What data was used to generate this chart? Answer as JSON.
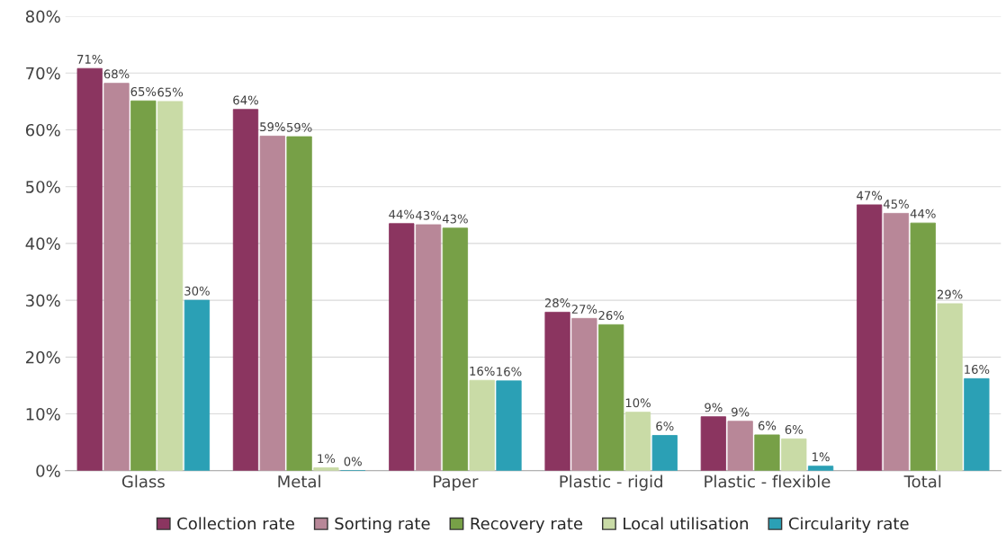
{
  "chart_data": {
    "type": "bar",
    "categories": [
      "Glass",
      "Metal",
      "Paper",
      "Plastic - rigid",
      "Plastic - flexible",
      "Total"
    ],
    "series": [
      {
        "name": "Collection rate",
        "color": "#8b3560",
        "values": [
          70.8,
          63.6,
          43.5,
          27.9,
          9.5,
          46.8
        ],
        "value_labels": [
          "71%",
          "64%",
          "44%",
          "28%",
          "9%",
          "47%"
        ]
      },
      {
        "name": "Sorting rate",
        "color": "#b88798",
        "values": [
          68.2,
          58.9,
          43.3,
          26.8,
          8.7,
          45.3
        ],
        "value_labels": [
          "68%",
          "59%",
          "43%",
          "27%",
          "9%",
          "45%"
        ]
      },
      {
        "name": "Recovery rate",
        "color": "#77a047",
        "values": [
          65.1,
          58.8,
          42.7,
          25.7,
          6.3,
          43.6
        ],
        "value_labels": [
          "65%",
          "59%",
          "43%",
          "26%",
          "6%",
          "44%"
        ]
      },
      {
        "name": "Local utilisation",
        "color": "#c9dba6",
        "values": [
          65.0,
          0.5,
          15.9,
          10.3,
          5.6,
          29.4
        ],
        "value_labels": [
          "65%",
          "1%",
          "16%",
          "10%",
          "6%",
          "29%"
        ]
      },
      {
        "name": "Circularity rate",
        "color": "#2ba0b5",
        "values": [
          30.0,
          0.0,
          15.8,
          6.2,
          0.8,
          16.2
        ],
        "value_labels": [
          "30%",
          "0%",
          "16%",
          "6%",
          "1%",
          "16%"
        ]
      }
    ],
    "ylim": [
      0,
      80
    ],
    "yticks": [
      {
        "value": 0,
        "label": "0%"
      },
      {
        "value": 10,
        "label": "10%"
      },
      {
        "value": 20,
        "label": "20%"
      },
      {
        "value": 30,
        "label": "30%"
      },
      {
        "value": 40,
        "label": "40%"
      },
      {
        "value": 50,
        "label": "50%"
      },
      {
        "value": 60,
        "label": "60%"
      },
      {
        "value": 70,
        "label": "70%"
      },
      {
        "value": 80,
        "label": "80%"
      }
    ],
    "grid": "y",
    "legend": "bottom"
  }
}
